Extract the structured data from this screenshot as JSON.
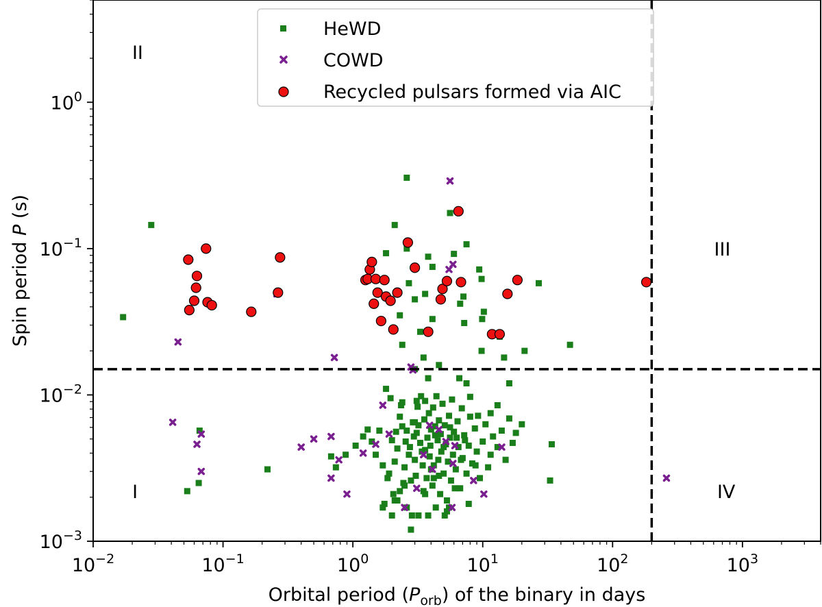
{
  "chart_data": {
    "type": "scatter",
    "xscale": "log",
    "yscale": "log",
    "xlim": [
      0.01,
      4000
    ],
    "ylim": [
      0.001,
      5
    ],
    "xlabel_prefix": "Orbital period (",
    "xlabel_sym": "P",
    "xlabel_sub": "orb",
    "xlabel_suffix": ") of the binary in days",
    "ylabel_prefix": "Spin period ",
    "ylabel_sym": "P",
    "ylabel_suffix": " (s)",
    "x_ticks": [
      {
        "value": 0.01,
        "base": "10",
        "exp": "−2"
      },
      {
        "value": 0.1,
        "base": "10",
        "exp": "−1"
      },
      {
        "value": 1,
        "base": "10",
        "exp": "0"
      },
      {
        "value": 10,
        "base": "10",
        "exp": "1"
      },
      {
        "value": 100,
        "base": "10",
        "exp": "2"
      },
      {
        "value": 1000,
        "base": "10",
        "exp": "3"
      }
    ],
    "y_ticks": [
      {
        "value": 0.001,
        "base": "10",
        "exp": "−3"
      },
      {
        "value": 0.01,
        "base": "10",
        "exp": "−2"
      },
      {
        "value": 0.1,
        "base": "10",
        "exp": "−1"
      },
      {
        "value": 1,
        "base": "10",
        "exp": "0"
      }
    ],
    "threshold_lines": {
      "x": 200,
      "y": 0.015
    },
    "region_labels": [
      {
        "text": "I",
        "x": 0.021,
        "y": 0.0022
      },
      {
        "text": "II",
        "x": 0.022,
        "y": 2.2
      },
      {
        "text": "III",
        "x": 700,
        "y": 0.1
      },
      {
        "text": "IV",
        "x": 750,
        "y": 0.0022
      }
    ],
    "legend_position": "top-center",
    "series": [
      {
        "name": "HeWD",
        "marker": "square",
        "color": "#1a7f1a",
        "points": [
          [
            0.017,
            0.034
          ],
          [
            0.028,
            0.145
          ],
          [
            0.053,
            0.0022
          ],
          [
            0.065,
            0.0025
          ],
          [
            0.066,
            0.0057
          ],
          [
            0.22,
            0.0031
          ],
          [
            0.68,
            0.0038
          ],
          [
            0.74,
            0.0032
          ],
          [
            0.88,
            0.0039
          ],
          [
            1.05,
            0.0045
          ],
          [
            1.2,
            0.0052
          ],
          [
            1.3,
            0.0058
          ],
          [
            1.4,
            0.0048
          ],
          [
            1.5,
            0.0039
          ],
          [
            1.6,
            0.0057
          ],
          [
            1.7,
            0.0033
          ],
          [
            1.75,
            0.0018
          ],
          [
            1.8,
            0.011
          ],
          [
            1.85,
            0.0027
          ],
          [
            1.9,
            0.0029
          ],
          [
            1.95,
            0.0095
          ],
          [
            2.0,
            0.0049
          ],
          [
            2.05,
            0.0021
          ],
          [
            2.1,
            0.0035
          ],
          [
            2.15,
            0.0056
          ],
          [
            2.2,
            0.0043
          ],
          [
            2.3,
            0.0071
          ],
          [
            2.35,
            0.0085
          ],
          [
            2.4,
            0.0061
          ],
          [
            2.45,
            0.0025
          ],
          [
            2.5,
            0.0032
          ],
          [
            2.55,
            0.0048
          ],
          [
            2.6,
            0.0057
          ],
          [
            2.7,
            0.0039
          ],
          [
            2.75,
            0.0044
          ],
          [
            2.8,
            0.0026
          ],
          [
            2.85,
            0.0015
          ],
          [
            2.9,
            0.0065
          ],
          [
            2.95,
            0.0052
          ],
          [
            3.0,
            0.0036
          ],
          [
            3.05,
            0.0028
          ],
          [
            3.1,
            0.0055
          ],
          [
            3.15,
            0.0083
          ],
          [
            3.2,
            0.0062
          ],
          [
            3.3,
            0.0047
          ],
          [
            3.35,
            0.0098
          ],
          [
            3.4,
            0.0041
          ],
          [
            3.45,
            0.0033
          ],
          [
            3.5,
            0.0022
          ],
          [
            3.55,
            0.0068
          ],
          [
            3.6,
            0.0091
          ],
          [
            3.7,
            0.0027
          ],
          [
            3.75,
            0.0051
          ],
          [
            3.8,
            0.013
          ],
          [
            3.85,
            0.0075
          ],
          [
            3.9,
            0.0038
          ],
          [
            3.95,
            0.0045
          ],
          [
            4.0,
            0.0058
          ],
          [
            4.1,
            0.0024
          ],
          [
            4.15,
            0.0082
          ],
          [
            4.2,
            0.0033
          ],
          [
            4.3,
            0.0061
          ],
          [
            4.35,
            0.0017
          ],
          [
            4.4,
            0.0098
          ],
          [
            4.5,
            0.0049
          ],
          [
            4.55,
            0.0036
          ],
          [
            4.6,
            0.0067
          ],
          [
            4.7,
            0.0021
          ],
          [
            4.75,
            0.0054
          ],
          [
            4.8,
            0.0041
          ],
          [
            4.9,
            0.0087
          ],
          [
            5.0,
            0.0029
          ],
          [
            5.1,
            0.0062
          ],
          [
            5.2,
            0.0046
          ],
          [
            5.3,
            0.0016
          ],
          [
            5.4,
            0.0035
          ],
          [
            5.5,
            0.0072
          ],
          [
            5.6,
            0.0051
          ],
          [
            5.7,
            0.0026
          ],
          [
            5.8,
            0.0093
          ],
          [
            5.9,
            0.0039
          ],
          [
            6.0,
            0.0056
          ],
          [
            6.2,
            0.0031
          ],
          [
            6.4,
            0.0066
          ],
          [
            6.5,
            0.0044
          ],
          [
            6.7,
            0.0023
          ],
          [
            6.9,
            0.0081
          ],
          [
            7.0,
            0.0037
          ],
          [
            7.2,
            0.0053
          ],
          [
            7.5,
            0.0029
          ],
          [
            7.8,
            0.0045
          ],
          [
            8.0,
            0.0071
          ],
          [
            8.3,
            0.0034
          ],
          [
            8.7,
            0.0059
          ],
          [
            9.0,
            0.0041
          ],
          [
            9.5,
            0.0027
          ],
          [
            10.0,
            0.0048
          ],
          [
            10.5,
            0.0063
          ],
          [
            11.0,
            0.0032
          ],
          [
            11.5,
            0.0039
          ],
          [
            12.0,
            0.0052
          ],
          [
            13.0,
            0.0044
          ],
          [
            14.0,
            0.0057
          ],
          [
            15.0,
            0.0036
          ],
          [
            16.0,
            0.0069
          ],
          [
            17.0,
            0.0047
          ],
          [
            18.0,
            0.0055
          ],
          [
            20.0,
            0.0063
          ],
          [
            33.0,
            0.0026
          ],
          [
            34.0,
            0.0046
          ],
          [
            1.7,
            0.0017
          ],
          [
            2.0,
            0.0015
          ],
          [
            2.1,
            0.0019
          ],
          [
            2.2,
            0.0019
          ],
          [
            2.3,
            0.0022
          ],
          [
            2.5,
            0.0024
          ],
          [
            2.6,
            0.0017
          ],
          [
            3.2,
            0.0015
          ],
          [
            3.6,
            0.0021
          ],
          [
            3.8,
            0.0015
          ],
          [
            4.2,
            0.0027
          ],
          [
            5.1,
            0.0015
          ],
          [
            5.3,
            0.0019
          ],
          [
            5.5,
            0.0017
          ],
          [
            6.1,
            0.0023
          ],
          [
            7.8,
            0.0018
          ],
          [
            2.4,
            0.0089
          ],
          [
            2.8,
            0.0012
          ],
          [
            3.0,
            0.0065
          ],
          [
            3.1,
            0.0091
          ],
          [
            3.6,
            0.0042
          ],
          [
            4.0,
            0.0031
          ],
          [
            4.3,
            0.0053
          ],
          [
            4.6,
            0.0028
          ],
          [
            5.0,
            0.0044
          ],
          [
            5.6,
            0.006
          ],
          [
            6.3,
            0.0051
          ],
          [
            6.8,
            0.0036
          ],
          [
            7.3,
            0.0049
          ],
          [
            8.8,
            0.0033
          ],
          [
            9.2,
            0.0072
          ],
          [
            2.6,
            0.305
          ],
          [
            5.6,
            0.175
          ],
          [
            2.1,
            0.145
          ],
          [
            2.6,
            0.1
          ],
          [
            3.8,
            0.088
          ],
          [
            4.1,
            0.075
          ],
          [
            6.0,
            0.092
          ],
          [
            7.5,
            0.107
          ],
          [
            9.4,
            0.072
          ],
          [
            9.8,
            0.062
          ],
          [
            3.6,
            0.049
          ],
          [
            4.1,
            0.033
          ],
          [
            3.0,
            0.045
          ],
          [
            6.7,
            0.042
          ],
          [
            7.1,
            0.047
          ],
          [
            7.2,
            0.031
          ],
          [
            2.7,
            0.058
          ],
          [
            1.8,
            0.093
          ],
          [
            2.3,
            0.035
          ],
          [
            2.4,
            0.022
          ],
          [
            3.3,
            0.027
          ],
          [
            3.5,
            0.018
          ],
          [
            3.0,
            0.015
          ],
          [
            4.6,
            0.016
          ],
          [
            6.6,
            0.013
          ],
          [
            7.5,
            0.012
          ],
          [
            9.8,
            0.02
          ],
          [
            9.9,
            0.033
          ],
          [
            10.2,
            0.037
          ],
          [
            13.5,
            0.025
          ],
          [
            14.6,
            0.018
          ],
          [
            21.0,
            0.02
          ],
          [
            27.0,
            0.058
          ],
          [
            47.0,
            0.022
          ],
          [
            11.5,
            0.0075
          ],
          [
            13.0,
            0.0085
          ],
          [
            8.0,
            0.0097
          ],
          [
            16.0,
            0.012
          ]
        ]
      },
      {
        "name": "COWD",
        "marker": "x",
        "color": "#7a1f8f",
        "points": [
          [
            0.041,
            0.0065
          ],
          [
            0.045,
            0.023
          ],
          [
            0.063,
            0.0046
          ],
          [
            0.068,
            0.0054
          ],
          [
            0.068,
            0.003
          ],
          [
            0.26,
            0.049
          ],
          [
            0.4,
            0.0044
          ],
          [
            0.5,
            0.005
          ],
          [
            0.68,
            0.0052
          ],
          [
            0.72,
            0.018
          ],
          [
            0.68,
            0.0027
          ],
          [
            0.78,
            0.0036
          ],
          [
            0.9,
            0.0021
          ],
          [
            1.2,
            0.004
          ],
          [
            1.5,
            0.0046
          ],
          [
            1.7,
            0.0085
          ],
          [
            2.5,
            0.0017
          ],
          [
            2.8,
            0.0155
          ],
          [
            2.9,
            0.0148
          ],
          [
            3.5,
            0.0039
          ],
          [
            4.1,
            0.0031
          ],
          [
            5.2,
            0.0048
          ],
          [
            5.8,
            0.0017
          ],
          [
            5.6,
            0.29
          ],
          [
            5.9,
            0.078
          ],
          [
            5.5,
            0.072
          ],
          [
            5.9,
            0.0034
          ],
          [
            6.1,
            0.0045
          ],
          [
            10.2,
            0.0021
          ],
          [
            260,
            0.0027
          ],
          [
            3.1,
            0.0023
          ],
          [
            4.6,
            0.0058
          ],
          [
            8.5,
            0.0026
          ],
          [
            1.9,
            0.0054
          ],
          [
            3.9,
            0.0062
          ],
          [
            14.0,
            0.0044
          ]
        ]
      },
      {
        "name": "Recycled pulsars formed via AIC",
        "marker": "circle",
        "color": "#ee1111",
        "points": [
          [
            0.054,
            0.084
          ],
          [
            0.055,
            0.038
          ],
          [
            0.06,
            0.044
          ],
          [
            0.062,
            0.054
          ],
          [
            0.063,
            0.065
          ],
          [
            0.074,
            0.1
          ],
          [
            0.076,
            0.043
          ],
          [
            0.082,
            0.041
          ],
          [
            0.165,
            0.037
          ],
          [
            0.265,
            0.05
          ],
          [
            0.275,
            0.087
          ],
          [
            1.25,
            0.061
          ],
          [
            1.3,
            0.062
          ],
          [
            1.35,
            0.072
          ],
          [
            1.4,
            0.081
          ],
          [
            1.45,
            0.042
          ],
          [
            1.5,
            0.062
          ],
          [
            1.55,
            0.05
          ],
          [
            1.65,
            0.032
          ],
          [
            1.75,
            0.061
          ],
          [
            1.8,
            0.047
          ],
          [
            1.95,
            0.044
          ],
          [
            2.05,
            0.028
          ],
          [
            2.2,
            0.05
          ],
          [
            2.65,
            0.11
          ],
          [
            3.0,
            0.074
          ],
          [
            3.8,
            0.027
          ],
          [
            4.75,
            0.045
          ],
          [
            4.9,
            0.053
          ],
          [
            5.3,
            0.06
          ],
          [
            6.5,
            0.18
          ],
          [
            6.8,
            0.059
          ],
          [
            11.8,
            0.026
          ],
          [
            13.5,
            0.026
          ],
          [
            15.5,
            0.049
          ],
          [
            18.5,
            0.061
          ],
          [
            182,
            0.059
          ]
        ]
      }
    ]
  }
}
